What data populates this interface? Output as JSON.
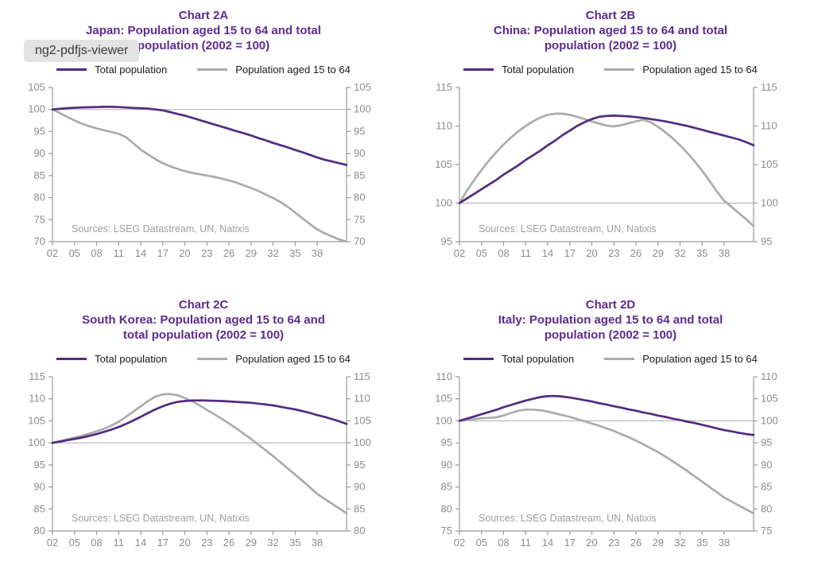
{
  "overlay_tooltip": {
    "label": "ng2-pdfjs-viewer"
  },
  "legend": {
    "total": "Total population",
    "aged": "Population aged 15 to 64"
  },
  "source_note": "Sources: LSEG Datastream, UN, Natixis",
  "colors": {
    "line_purple": "#532B80",
    "line_gray": "#ABABAB",
    "title_purple": "#5E2B8E",
    "axis": "#999999",
    "tick_label": "#8C8C8C",
    "ref_line": "#ABABAB",
    "source_text": "#9E9E9E",
    "legend_text": "#1A1A1A",
    "overlay_bg": "#E3E3E3",
    "overlay_text": "#3A3A3A"
  },
  "chart_data": [
    {
      "id": "2A",
      "type": "line",
      "title": [
        "Chart 2A",
        "Japan: Population aged 15 to 64 and total",
        "population (2002 = 100)"
      ],
      "x_start_year": 2002,
      "xlim": [
        2002,
        2042
      ],
      "xticks": {
        "years": [
          2002,
          2005,
          2008,
          2011,
          2014,
          2017,
          2020,
          2023,
          2026,
          2029,
          2032,
          2035,
          2038
        ],
        "labels": [
          "02",
          "05",
          "08",
          "11",
          "14",
          "17",
          "20",
          "23",
          "26",
          "29",
          "32",
          "35",
          "38"
        ]
      },
      "ylim": [
        70,
        105
      ],
      "ytick_step": 5,
      "ref_y": 100,
      "grid": false,
      "legend_position": "top",
      "series": [
        {
          "name": "Total population",
          "color": "line_purple",
          "values": [
            100,
            100.15,
            100.3,
            100.4,
            100.45,
            100.5,
            100.55,
            100.6,
            100.6,
            100.55,
            100.45,
            100.35,
            100.3,
            100.2,
            100,
            99.8,
            99.4,
            99,
            98.6,
            98.1,
            97.6,
            97.1,
            96.6,
            96.1,
            95.6,
            95.1,
            94.6,
            94.1,
            93.5,
            93,
            92.4,
            91.9,
            91.4,
            90.8,
            90.3,
            89.7,
            89.1,
            88.6,
            88.2,
            87.8,
            87.4
          ]
        },
        {
          "name": "Population aged 15 to 64",
          "color": "line_gray",
          "values": [
            100,
            99.2,
            98.3,
            97.5,
            96.8,
            96.2,
            95.7,
            95.3,
            94.9,
            94.5,
            93.7,
            92.3,
            90.9,
            89.8,
            88.7,
            87.8,
            87.1,
            86.5,
            86,
            85.6,
            85.3,
            85,
            84.7,
            84.3,
            83.9,
            83.4,
            82.8,
            82.2,
            81.5,
            80.7,
            79.9,
            79,
            77.9,
            76.6,
            75.3,
            74,
            72.8,
            71.9,
            71.2,
            70.5,
            70
          ]
        }
      ]
    },
    {
      "id": "2B",
      "type": "line",
      "title": [
        "Chart 2B",
        "China: Population aged 15 to 64 and total",
        "population (2002 = 100)"
      ],
      "x_start_year": 2002,
      "xlim": [
        2002,
        2042
      ],
      "xticks": {
        "years": [
          2002,
          2005,
          2008,
          2011,
          2014,
          2017,
          2020,
          2023,
          2026,
          2029,
          2032,
          2035,
          2038
        ],
        "labels": [
          "02",
          "05",
          "08",
          "11",
          "14",
          "17",
          "20",
          "23",
          "26",
          "29",
          "32",
          "35",
          "38"
        ]
      },
      "ylim": [
        95,
        115
      ],
      "ytick_step": 5,
      "ref_y": 100,
      "grid": false,
      "legend_position": "top",
      "series": [
        {
          "name": "Total population",
          "color": "line_purple",
          "values": [
            100,
            100.6,
            101.2,
            101.8,
            102.4,
            103,
            103.7,
            104.3,
            104.9,
            105.6,
            106.2,
            106.8,
            107.5,
            108.1,
            108.8,
            109.4,
            110,
            110.5,
            110.9,
            111.2,
            111.3,
            111.35,
            111.3,
            111.25,
            111.15,
            111.05,
            110.9,
            110.75,
            110.6,
            110.4,
            110.2,
            110,
            109.75,
            109.5,
            109.25,
            109,
            108.75,
            108.5,
            108.25,
            107.9,
            107.5
          ]
        },
        {
          "name": "Population aged 15 to 64",
          "color": "line_gray",
          "values": [
            100,
            101.6,
            103,
            104.3,
            105.5,
            106.6,
            107.6,
            108.5,
            109.3,
            110,
            110.6,
            111.1,
            111.45,
            111.6,
            111.6,
            111.45,
            111.2,
            110.9,
            110.6,
            110.3,
            110.05,
            109.95,
            110.1,
            110.35,
            110.6,
            110.8,
            110.5,
            109.9,
            109.2,
            108.4,
            107.5,
            106.5,
            105.4,
            104.2,
            102.9,
            101.5,
            100.3,
            99.5,
            98.7,
            97.9,
            97
          ]
        }
      ]
    },
    {
      "id": "2C",
      "type": "line",
      "title": [
        "Chart 2C",
        "South Korea: Population aged 15 to 64 and",
        "total population (2002 = 100)"
      ],
      "x_start_year": 2002,
      "xlim": [
        2002,
        2042
      ],
      "xticks": {
        "years": [
          2002,
          2005,
          2008,
          2011,
          2014,
          2017,
          2020,
          2023,
          2026,
          2029,
          2032,
          2035,
          2038
        ],
        "labels": [
          "02",
          "05",
          "08",
          "11",
          "14",
          "17",
          "20",
          "23",
          "26",
          "29",
          "32",
          "35",
          "38"
        ]
      },
      "ylim": [
        80,
        115
      ],
      "ytick_step": 5,
      "ref_y": 100,
      "grid": false,
      "legend_position": "top",
      "series": [
        {
          "name": "Total population",
          "color": "line_purple",
          "values": [
            100,
            100.3,
            100.6,
            100.9,
            101.2,
            101.6,
            102,
            102.5,
            103,
            103.6,
            104.3,
            105.1,
            105.9,
            106.8,
            107.6,
            108.3,
            108.9,
            109.3,
            109.5,
            109.6,
            109.65,
            109.6,
            109.55,
            109.5,
            109.4,
            109.3,
            109.2,
            109.1,
            108.9,
            108.7,
            108.5,
            108.2,
            107.9,
            107.6,
            107.2,
            106.8,
            106.3,
            105.9,
            105.4,
            104.9,
            104.3
          ]
        },
        {
          "name": "Population aged 15 to 64",
          "color": "line_gray",
          "values": [
            100,
            100.4,
            100.8,
            101.2,
            101.6,
            102.1,
            102.6,
            103.2,
            103.9,
            104.8,
            105.9,
            107.1,
            108.3,
            109.5,
            110.5,
            111,
            111.1,
            110.8,
            110.2,
            109.4,
            108.5,
            107.5,
            106.5,
            105.5,
            104.4,
            103.3,
            102.1,
            100.9,
            99.6,
            98.3,
            97,
            95.6,
            94.2,
            92.8,
            91.4,
            89.9,
            88.4,
            87.3,
            86.2,
            85.1,
            84
          ]
        }
      ]
    },
    {
      "id": "2D",
      "type": "line",
      "title": [
        "Chart 2D",
        "Italy: Population aged 15 to 64 and total",
        "population (2002 = 100)"
      ],
      "x_start_year": 2002,
      "xlim": [
        2002,
        2042
      ],
      "xticks": {
        "years": [
          2002,
          2005,
          2008,
          2011,
          2014,
          2017,
          2020,
          2023,
          2026,
          2029,
          2032,
          2035,
          2038
        ],
        "labels": [
          "02",
          "05",
          "08",
          "11",
          "14",
          "17",
          "20",
          "23",
          "26",
          "29",
          "32",
          "35",
          "38"
        ]
      },
      "ylim": [
        75,
        110
      ],
      "ytick_step": 5,
      "ref_y": 100,
      "grid": false,
      "legend_position": "top",
      "series": [
        {
          "name": "Total population",
          "color": "line_purple",
          "values": [
            100,
            100.5,
            101,
            101.5,
            102,
            102.5,
            103.1,
            103.6,
            104.1,
            104.6,
            105,
            105.4,
            105.6,
            105.65,
            105.5,
            105.3,
            105,
            104.7,
            104.4,
            104,
            103.7,
            103.3,
            103,
            102.6,
            102.3,
            101.9,
            101.6,
            101.2,
            100.9,
            100.5,
            100.2,
            99.8,
            99.5,
            99.1,
            98.7,
            98.3,
            97.9,
            97.6,
            97.3,
            97,
            96.8
          ]
        },
        {
          "name": "Population aged 15 to 64",
          "color": "line_gray",
          "values": [
            100,
            100.2,
            100.4,
            100.6,
            100.65,
            100.8,
            101.2,
            101.8,
            102.3,
            102.55,
            102.55,
            102.4,
            102.1,
            101.7,
            101.3,
            100.9,
            100.4,
            99.9,
            99.4,
            98.9,
            98.3,
            97.7,
            97,
            96.3,
            95.5,
            94.7,
            93.8,
            92.9,
            91.9,
            90.8,
            89.7,
            88.6,
            87.4,
            86.2,
            85,
            83.8,
            82.6,
            81.7,
            80.8,
            79.9,
            79
          ]
        }
      ]
    }
  ]
}
